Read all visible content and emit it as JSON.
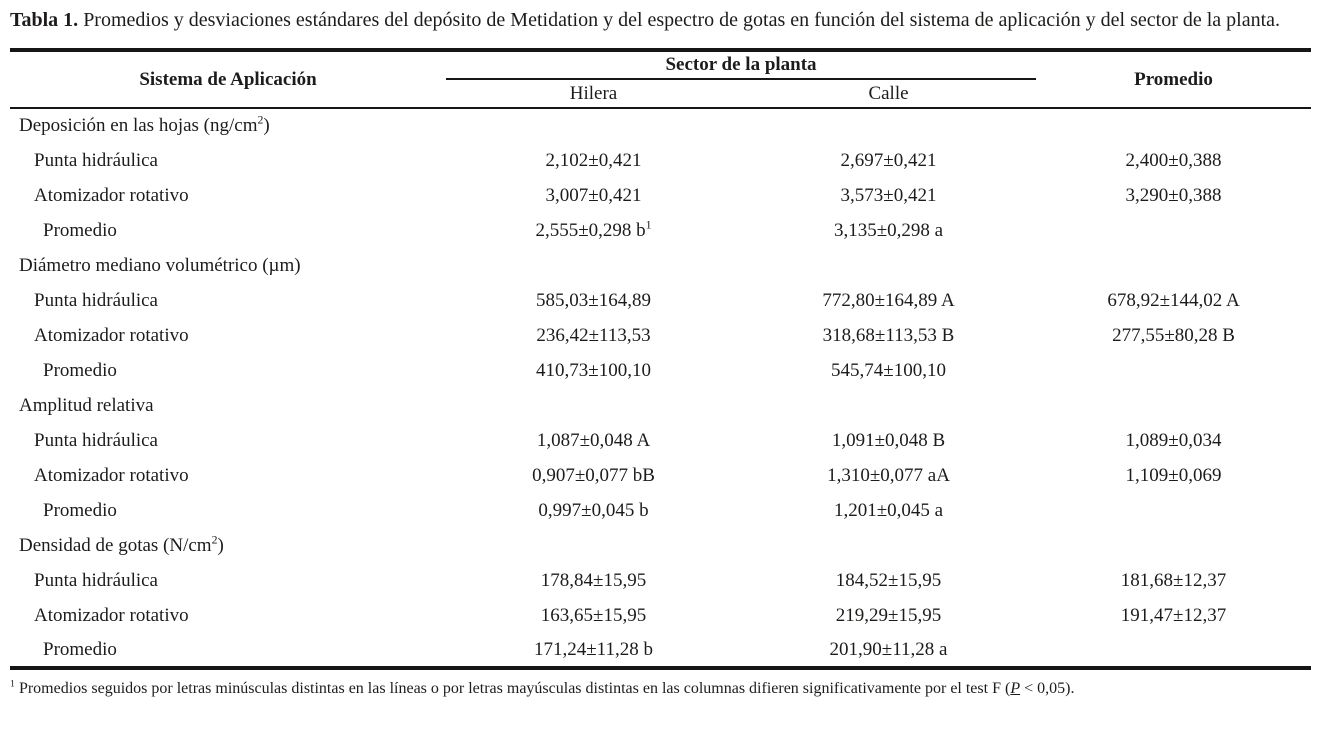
{
  "caption": {
    "label": "Tabla 1.",
    "text": " Promedios y desviaciones estándares del depósito de Metidation y del espectro de gotas en función del sistema de aplicación y del sector de la planta."
  },
  "table": {
    "headers": {
      "sistema": "Sistema de Aplicación",
      "sector": "Sector de la planta",
      "hilera": "Hilera",
      "calle": "Calle",
      "promedio": "Promedio"
    },
    "sections": [
      {
        "title": "Deposición en las hojas (ng/cm^2)",
        "rows": [
          {
            "label": "Punta hidráulica",
            "summary": false,
            "hilera": "2,102±0,421",
            "calle": "2,697±0,421",
            "promedio": "2,400±0,388"
          },
          {
            "label": "Atomizador rotativo",
            "summary": false,
            "hilera": "3,007±0,421",
            "calle": "3,573±0,421",
            "promedio": "3,290±0,388"
          },
          {
            "label": "Promedio",
            "summary": true,
            "hilera": "2,555±0,298 b^1",
            "calle": "3,135±0,298 a",
            "promedio": ""
          }
        ]
      },
      {
        "title": "Diámetro mediano volumétrico (µm)",
        "rows": [
          {
            "label": "Punta hidráulica",
            "summary": false,
            "hilera": "585,03±164,89",
            "calle": "772,80±164,89 A",
            "promedio": "678,92±144,02 A"
          },
          {
            "label": "Atomizador rotativo",
            "summary": false,
            "hilera": "236,42±113,53",
            "calle": "318,68±113,53 B",
            "promedio": "277,55±80,28 B"
          },
          {
            "label": "Promedio",
            "summary": true,
            "hilera": "410,73±100,10",
            "calle": "545,74±100,10",
            "promedio": ""
          }
        ]
      },
      {
        "title": "Amplitud relativa",
        "rows": [
          {
            "label": "Punta hidráulica",
            "summary": false,
            "hilera": "1,087±0,048 A",
            "calle": "1,091±0,048 B",
            "promedio": "1,089±0,034"
          },
          {
            "label": "Atomizador rotativo",
            "summary": false,
            "hilera": "0,907±0,077 bB",
            "calle": "1,310±0,077 aA",
            "promedio": "1,109±0,069"
          },
          {
            "label": "Promedio",
            "summary": true,
            "hilera": "0,997±0,045 b",
            "calle": "1,201±0,045 a",
            "promedio": ""
          }
        ]
      },
      {
        "title": "Densidad de gotas (N/cm^2)",
        "rows": [
          {
            "label": "Punta hidráulica",
            "summary": false,
            "hilera": "178,84±15,95",
            "calle": "184,52±15,95",
            "promedio": "181,68±12,37"
          },
          {
            "label": "Atomizador rotativo",
            "summary": false,
            "hilera": "163,65±15,95",
            "calle": "219,29±15,95",
            "promedio": "191,47±12,37"
          },
          {
            "label": "Promedio",
            "summary": true,
            "hilera": "171,24±11,28 b",
            "calle": "201,90±11,28 a",
            "promedio": ""
          }
        ]
      }
    ]
  },
  "footnote": {
    "marker": "1",
    "text_before_p": " Promedios seguidos por letras minúsculas distintas en las líneas o por letras mayúsculas distintas en las columnas difieren significativamente por el test F (",
    "p_symbol": "P",
    "text_after_p": " < 0,05)."
  },
  "colors": {
    "text": "#1e1c1a",
    "rule": "#161616",
    "background": "#ffffff"
  }
}
